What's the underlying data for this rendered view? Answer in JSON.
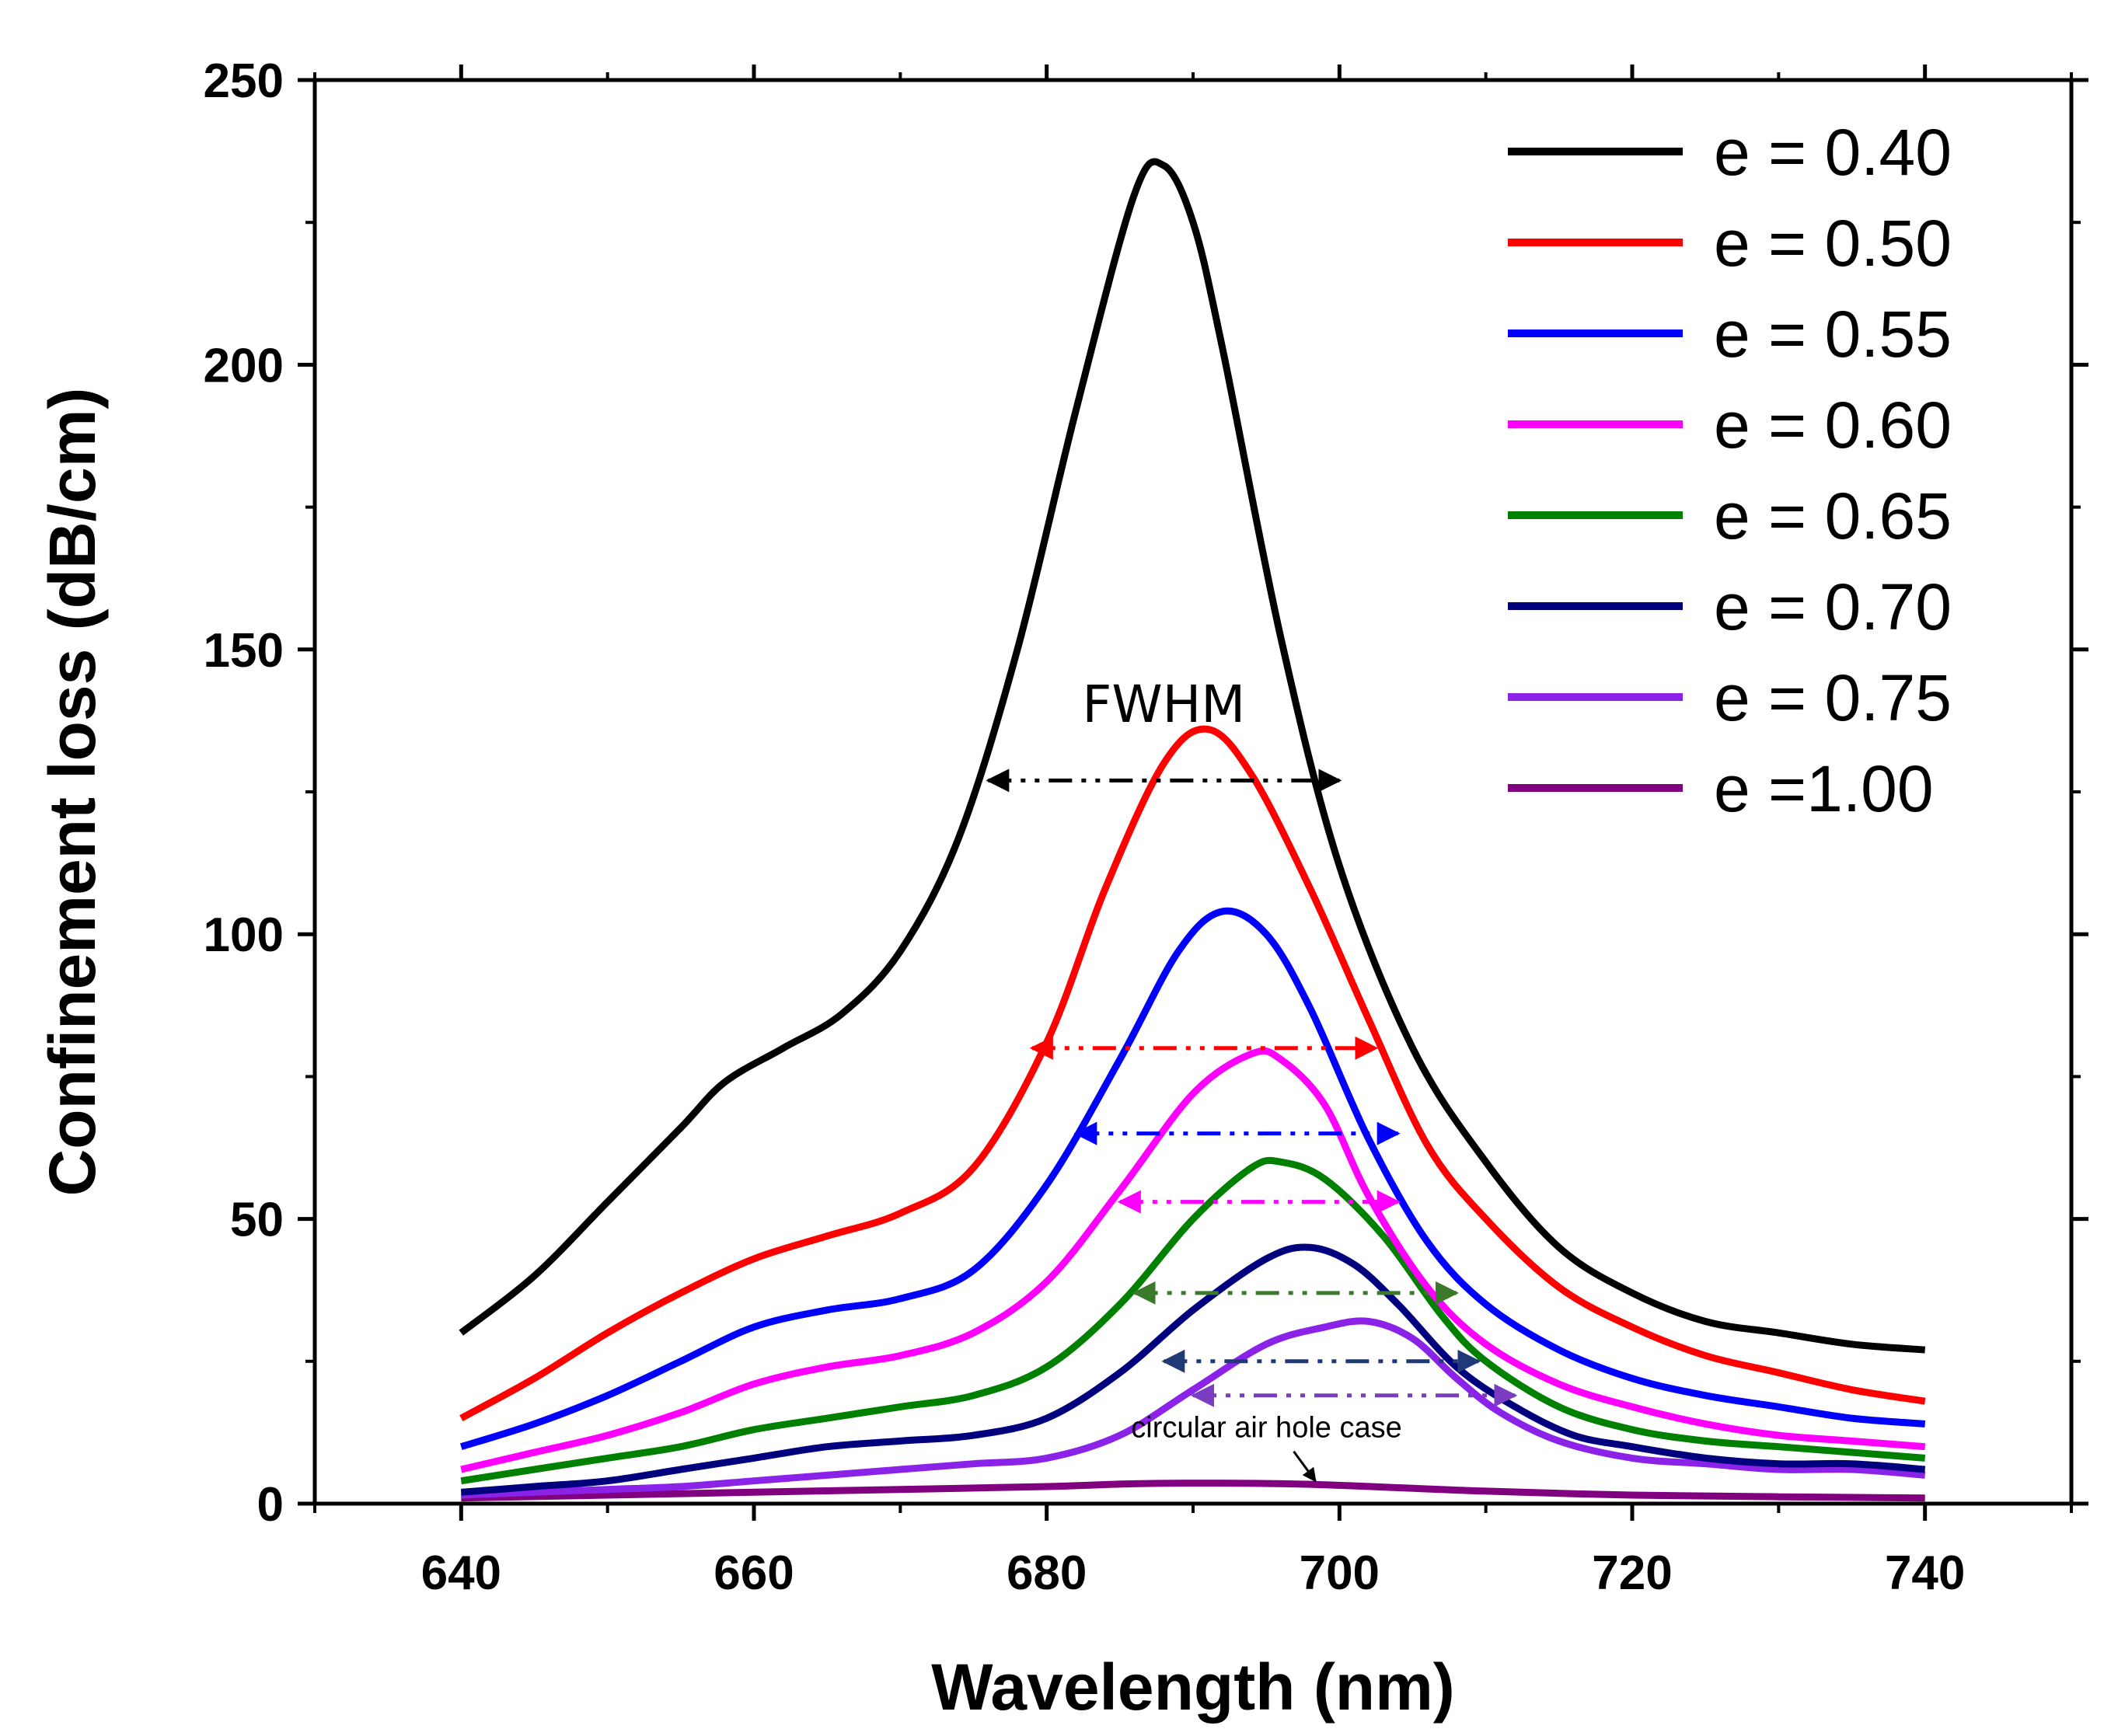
{
  "chart_data": {
    "type": "line",
    "title": "",
    "xlabel": "Wavelength (nm)",
    "ylabel": "Confinement loss (dB/cm)",
    "xlim": [
      630,
      750
    ],
    "ylim": [
      0,
      250
    ],
    "xticks": [
      640,
      660,
      680,
      700,
      720,
      740
    ],
    "yticks": [
      0,
      50,
      100,
      150,
      200,
      250
    ],
    "legend_position": "top-right",
    "series": [
      {
        "name": "e = 0.40",
        "color": "#000000",
        "x": [
          640,
          645,
          650,
          655,
          658,
          662,
          666,
          670,
          674,
          678,
          682,
          686,
          688,
          690,
          692,
          696,
          700,
          705,
          710,
          715,
          720,
          725,
          730,
          735,
          740
        ],
        "y": [
          30,
          40,
          53,
          66,
          74,
          80,
          86,
          97,
          117,
          150,
          192,
          230,
          235,
          225,
          203,
          152,
          112,
          80,
          60,
          45,
          37,
          32,
          30,
          28,
          27
        ]
      },
      {
        "name": "e = 0.50",
        "color": "#ff0000",
        "x": [
          640,
          645,
          650,
          655,
          660,
          665,
          670,
          675,
          680,
          684,
          688,
          691,
          694,
          698,
          702,
          706,
          710,
          715,
          720,
          725,
          730,
          735,
          740
        ],
        "y": [
          15,
          22,
          30,
          37,
          43,
          47,
          51,
          59,
          81,
          108,
          130,
          136,
          128,
          108,
          85,
          63,
          50,
          38,
          31,
          26,
          23,
          20,
          18
        ]
      },
      {
        "name": "e = 0.55",
        "color": "#0000ff",
        "x": [
          640,
          645,
          650,
          655,
          660,
          665,
          670,
          675,
          680,
          685,
          689,
          692,
          695,
          698,
          702,
          706,
          710,
          715,
          720,
          725,
          730,
          735,
          740
        ],
        "y": [
          10,
          14,
          19,
          25,
          31,
          34,
          36,
          41,
          56,
          78,
          97,
          104,
          100,
          87,
          64,
          46,
          35,
          27,
          22,
          19,
          17,
          15,
          14
        ]
      },
      {
        "name": "e = 0.60",
        "color": "#ff00ff",
        "x": [
          640,
          645,
          650,
          655,
          660,
          665,
          670,
          675,
          680,
          685,
          690,
          694,
          696,
          699,
          702,
          706,
          710,
          715,
          720,
          725,
          730,
          735,
          740
        ],
        "y": [
          6,
          9,
          12,
          16,
          21,
          24,
          26,
          30,
          39,
          55,
          72,
          79,
          78,
          70,
          54,
          38,
          28,
          21,
          17,
          14,
          12,
          11,
          10
        ]
      },
      {
        "name": "e = 0.65",
        "color": "#008000",
        "x": [
          640,
          645,
          650,
          655,
          660,
          665,
          670,
          675,
          680,
          685,
          690,
          694,
          696,
          699,
          703,
          707,
          710,
          715,
          720,
          725,
          730,
          735,
          740
        ],
        "y": [
          4,
          6,
          8,
          10,
          13,
          15,
          17,
          19,
          24,
          35,
          50,
          59,
          60,
          57,
          47,
          33,
          25,
          17,
          13,
          11,
          10,
          9,
          8
        ]
      },
      {
        "name": "e = 0.70",
        "color": "#00007f",
        "x": [
          640,
          645,
          650,
          655,
          660,
          665,
          670,
          675,
          680,
          685,
          690,
          695,
          698,
          701,
          704,
          708,
          712,
          716,
          720,
          725,
          730,
          735,
          740
        ],
        "y": [
          2,
          3,
          4,
          6,
          8,
          10,
          11,
          12,
          15,
          23,
          34,
          43,
          45,
          42,
          35,
          24,
          17,
          12,
          10,
          8,
          7,
          7,
          6
        ]
      },
      {
        "name": "e = 0.75",
        "color": "#8b22e8",
        "x": [
          640,
          645,
          650,
          655,
          660,
          665,
          670,
          675,
          680,
          685,
          690,
          695,
          699,
          702,
          705,
          708,
          711,
          715,
          720,
          725,
          730,
          735,
          740
        ],
        "y": [
          1.5,
          2,
          2.5,
          3,
          4,
          5,
          6,
          7,
          8,
          12,
          20,
          28,
          31,
          32,
          29,
          22,
          16,
          11,
          8,
          7,
          6,
          6,
          5
        ]
      },
      {
        "name": "e =1.00",
        "color": "#800080",
        "x": [
          640,
          650,
          660,
          670,
          680,
          686,
          692,
          698,
          704,
          710,
          720,
          730,
          740
        ],
        "y": [
          1,
          1.5,
          2,
          2.5,
          3,
          3.5,
          3.6,
          3.4,
          2.8,
          2.2,
          1.5,
          1.2,
          1
        ]
      }
    ],
    "fwhm_arrows": [
      {
        "series": "e = 0.40",
        "color": "#000000",
        "x1": 676,
        "x2": 700,
        "y": 127
      },
      {
        "series": "e = 0.50",
        "color": "#ff0000",
        "x1": 679,
        "x2": 702.5,
        "y": 80
      },
      {
        "series": "e = 0.55",
        "color": "#0000ff",
        "x1": 682,
        "x2": 704,
        "y": 65
      },
      {
        "series": "e = 0.60",
        "color": "#ff00ff",
        "x1": 685,
        "x2": 704,
        "y": 53
      },
      {
        "series": "e = 0.65",
        "color": "#3a7a2a",
        "x1": 686,
        "x2": 708,
        "y": 37
      },
      {
        "series": "e = 0.70",
        "color": "#203a78",
        "x1": 688,
        "x2": 709.5,
        "y": 25
      },
      {
        "series": "e = 0.75",
        "color": "#7a3cc0",
        "x1": 690,
        "x2": 712,
        "y": 19
      }
    ],
    "annotations": [
      {
        "text": "FWHM",
        "x": 688,
        "y": 140
      },
      {
        "text": "circular air hole case",
        "x": 699,
        "y": 13,
        "arrow_to": [
          699,
          4.5
        ]
      }
    ]
  }
}
